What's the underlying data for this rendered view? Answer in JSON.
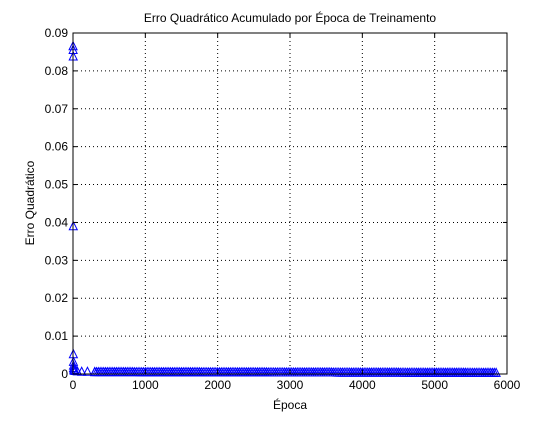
{
  "chart_data": {
    "type": "scatter",
    "title": "Erro Quadrático Acumulado por Época de Treinamento",
    "xlabel": "Época",
    "ylabel": "Erro Quadrático",
    "xlim": [
      0,
      6000
    ],
    "ylim": [
      0,
      0.09
    ],
    "x_ticks": [
      0,
      1000,
      2000,
      3000,
      4000,
      5000,
      6000
    ],
    "x_tick_labels": [
      "0",
      "1000",
      "2000",
      "3000",
      "4000",
      "5000",
      "6000"
    ],
    "y_ticks": [
      0,
      0.01,
      0.02,
      0.03,
      0.04,
      0.05,
      0.06,
      0.07,
      0.08,
      0.09
    ],
    "y_tick_labels": [
      "0",
      "0.01",
      "0.02",
      "0.03",
      "0.04",
      "0.05",
      "0.06",
      "0.07",
      "0.08",
      "0.09"
    ],
    "grid": true,
    "marker": "triangle-up",
    "marker_color": "#0000ff",
    "series": [
      {
        "early_points": [
          {
            "x": 1,
            "y": 0.0865
          },
          {
            "x": 2,
            "y": 0.0855
          },
          {
            "x": 3,
            "y": 0.0838
          },
          {
            "x": 4,
            "y": 0.039
          },
          {
            "x": 5,
            "y": 0.0052
          },
          {
            "x": 6,
            "y": 0.0032
          },
          {
            "x": 7,
            "y": 0.0022
          },
          {
            "x": 8,
            "y": 0.0016
          },
          {
            "x": 10,
            "y": 0.0012
          },
          {
            "x": 15,
            "y": 0.0009
          },
          {
            "x": 30,
            "y": 0.0008
          },
          {
            "x": 60,
            "y": 0.0007
          },
          {
            "x": 120,
            "y": 0.0006
          },
          {
            "x": 200,
            "y": 0.0006
          },
          {
            "x": 300,
            "y": 0.0005
          }
        ],
        "tail": {
          "x_start": 300,
          "x_end": 5850,
          "y_start": 0.0005,
          "y_end": 0.0003,
          "step": 25
        }
      }
    ]
  }
}
